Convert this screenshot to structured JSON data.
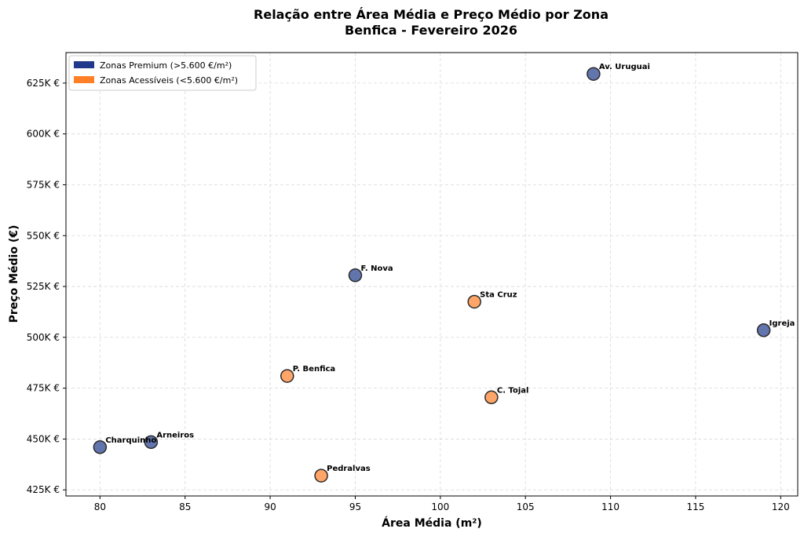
{
  "chart_data": {
    "type": "scatter",
    "title_line1": "Relação entre Área Média e Preço Médio por Zona",
    "title_line2": "Benfica - Fevereiro 2026",
    "xlabel": "Área Média (m²)",
    "ylabel": "Preço Médio (€)",
    "xlim": [
      78,
      121
    ],
    "ylim": [
      422000,
      640000
    ],
    "x_ticks": [
      80,
      85,
      90,
      95,
      100,
      105,
      110,
      115,
      120
    ],
    "x_tick_labels": [
      "80",
      "85",
      "90",
      "95",
      "100",
      "105",
      "110",
      "115",
      "120"
    ],
    "y_ticks": [
      425000,
      450000,
      475000,
      500000,
      525000,
      550000,
      575000,
      600000,
      625000
    ],
    "y_tick_labels": [
      "425K €",
      "450K €",
      "475K €",
      "500K €",
      "525K €",
      "550K €",
      "575K €",
      "600K €",
      "625K €"
    ],
    "grid": true,
    "legend_position": "top-left",
    "colors": {
      "premium": "#1f3a8a",
      "acessivel": "#ff7f27"
    },
    "series": [
      {
        "name": "Zonas Premium (>5.600 €/m²)",
        "key": "premium",
        "points": [
          {
            "label": "Av. Uruguai",
            "x": 109,
            "y": 629500
          },
          {
            "label": "F. Nova",
            "x": 95,
            "y": 530500
          },
          {
            "label": "Igreja",
            "x": 119,
            "y": 503500
          },
          {
            "label": "Arneiros",
            "x": 83,
            "y": 448500
          },
          {
            "label": "Charquinho",
            "x": 80,
            "y": 446000
          }
        ]
      },
      {
        "name": "Zonas Acessíveis (<5.600 €/m²)",
        "key": "acessivel",
        "points": [
          {
            "label": "Sta Cruz",
            "x": 102,
            "y": 517500
          },
          {
            "label": "P. Benfica",
            "x": 91,
            "y": 481000
          },
          {
            "label": "C. Tojal",
            "x": 103,
            "y": 470500
          },
          {
            "label": "Pedralvas",
            "x": 93,
            "y": 432000
          }
        ]
      }
    ]
  }
}
